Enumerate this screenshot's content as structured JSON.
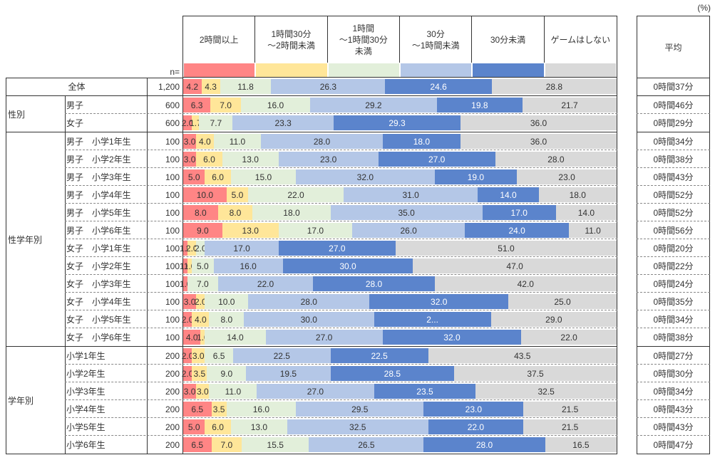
{
  "unit_label": "(%)",
  "n_label": "n=",
  "avg_header": "平均",
  "colors": {
    "2h_plus": "#FF8585",
    "1h30_2h": "#FFE699",
    "1h_1h30": "#E2EFDA",
    "30m_1h": "#B4C7E7",
    "under_30m": "#5B84CC",
    "no_game": "#D9D9D9"
  },
  "groups": [
    {
      "label": "",
      "rows": [
        0
      ]
    },
    {
      "label": "性別",
      "rows": [
        1,
        2
      ]
    },
    {
      "label": "性学年別",
      "rows": [
        3,
        4,
        5,
        6,
        7,
        8,
        9,
        10,
        11,
        12,
        13,
        14
      ]
    },
    {
      "label": "学年別",
      "rows": [
        15,
        16,
        17,
        18,
        19,
        20
      ]
    }
  ],
  "chart_data": {
    "type": "bar",
    "orientation": "horizontal-stacked-100",
    "title": "",
    "unit": "%",
    "series_names": [
      "2時間以上",
      "1時間30分\n～2時間未満",
      "1時間\n～1時間30分\n未満",
      "30分\n～1時間未満",
      "30分未満",
      "ゲームはしない"
    ],
    "categories": [
      "全体",
      "男子",
      "女子",
      "男子　小学1年生",
      "男子　小学2年生",
      "男子　小学3年生",
      "男子　小学4年生",
      "男子　小学5年生",
      "男子　小学6年生",
      "女子　小学1年生",
      "女子　小学2年生",
      "女子　小学3年生",
      "女子　小学4年生",
      "女子　小学5年生",
      "女子　小学6年生",
      "小学1年生",
      "小学2年生",
      "小学3年生",
      "小学4年生",
      "小学5年生",
      "小学6年生"
    ],
    "n": [
      "1,200",
      "600",
      "600",
      "100",
      "100",
      "100",
      "100",
      "100",
      "100",
      "100",
      "100",
      "100",
      "100",
      "100",
      "100",
      "200",
      "200",
      "200",
      "200",
      "200",
      "200"
    ],
    "values": [
      [
        4.2,
        4.3,
        11.8,
        26.3,
        24.6,
        28.8
      ],
      [
        6.3,
        7.0,
        16.0,
        29.2,
        19.8,
        21.7
      ],
      [
        2.0,
        1.7,
        7.7,
        23.3,
        29.3,
        36.0
      ],
      [
        3.0,
        4.0,
        11.0,
        28.0,
        18.0,
        36.0
      ],
      [
        3.0,
        6.0,
        13.0,
        23.0,
        27.0,
        28.0
      ],
      [
        5.0,
        6.0,
        15.0,
        32.0,
        19.0,
        23.0
      ],
      [
        10.0,
        5.0,
        22.0,
        31.0,
        14.0,
        18.0
      ],
      [
        8.0,
        8.0,
        18.0,
        35.0,
        17.0,
        14.0
      ],
      [
        9.0,
        13.0,
        17.0,
        26.0,
        24.0,
        11.0
      ],
      [
        1.0,
        2.0,
        2.0,
        17.0,
        27.0,
        51.0
      ],
      [
        1.0,
        1.0,
        5.0,
        16.0,
        30.0,
        47.0
      ],
      [
        1.0,
        0.0,
        7.0,
        22.0,
        28.0,
        42.0
      ],
      [
        3.0,
        2.0,
        10.0,
        28.0,
        32.0,
        25.0
      ],
      [
        2.0,
        4.0,
        8.0,
        30.0,
        27.0,
        29.0
      ],
      [
        4.0,
        1.0,
        14.0,
        27.0,
        32.0,
        22.0
      ],
      [
        2.0,
        3.0,
        6.5,
        22.5,
        22.5,
        43.5
      ],
      [
        2.0,
        3.5,
        9.0,
        19.5,
        28.5,
        37.5
      ],
      [
        3.0,
        3.0,
        11.0,
        27.0,
        23.5,
        32.5
      ],
      [
        6.5,
        3.5,
        16.0,
        29.5,
        23.0,
        21.5
      ],
      [
        5.0,
        6.0,
        13.0,
        32.5,
        22.0,
        21.5
      ],
      [
        6.5,
        7.0,
        15.5,
        26.5,
        28.0,
        16.5
      ]
    ],
    "labels": [
      [
        "4.2",
        "4.3",
        "11.8",
        "26.3",
        "24.6",
        "28.8"
      ],
      [
        "6.3",
        "7.0",
        "16.0",
        "29.2",
        "19.8",
        "21.7"
      ],
      [
        "2.0",
        "1.7",
        "7.7",
        "23.3",
        "29.3",
        "36.0"
      ],
      [
        "3.0",
        "4.0",
        "11.0",
        "28.0",
        "18.0",
        "36.0"
      ],
      [
        "3.0",
        "6.0",
        "13.0",
        "23.0",
        "27.0",
        "28.0"
      ],
      [
        "5.0",
        "6.0",
        "15.0",
        "32.0",
        "19.0",
        "23.0"
      ],
      [
        "10.0",
        "5.0",
        "22.0",
        "31.0",
        "14.0",
        "18.0"
      ],
      [
        "8.0",
        "8.0",
        "18.0",
        "35.0",
        "17.0",
        "14.0"
      ],
      [
        "9.0",
        "13.0",
        "17.0",
        "26.0",
        "24.0",
        "11.0"
      ],
      [
        "1.0",
        "2.0",
        "2.0",
        "17.0",
        "27.0",
        "51.0"
      ],
      [
        "1.0",
        "1.0",
        "5.0",
        "16.0",
        "30.0",
        "47.0"
      ],
      [
        "1.0",
        "",
        "7.0",
        "22.0",
        "28.0",
        "42.0"
      ],
      [
        "3.0",
        "2.0",
        "10.0",
        "28.0",
        "32.0",
        "25.0"
      ],
      [
        "2.0",
        "4.0",
        "8.0",
        "30.0",
        "2...",
        "29.0"
      ],
      [
        "4.0",
        "1.0",
        "14.0",
        "27.0",
        "32.0",
        "22.0"
      ],
      [
        "2.0",
        "3.0",
        "6.5",
        "22.5",
        "22.5",
        "43.5"
      ],
      [
        "2.0",
        "3.5",
        "9.0",
        "19.5",
        "28.5",
        "37.5"
      ],
      [
        "3.0",
        "3.0",
        "11.0",
        "27.0",
        "23.5",
        "32.5"
      ],
      [
        "6.5",
        "3.5",
        "16.0",
        "29.5",
        "23.0",
        "21.5"
      ],
      [
        "5.0",
        "6.0",
        "13.0",
        "32.5",
        "22.0",
        "21.5"
      ],
      [
        "6.5",
        "7.0",
        "15.5",
        "26.5",
        "28.0",
        "16.5"
      ]
    ],
    "averages": [
      "0時間37分",
      "0時間46分",
      "0時間29分",
      "0時間34分",
      "0時間38分",
      "0時間43分",
      "0時間52分",
      "0時間52分",
      "0時間56分",
      "0時間20分",
      "0時間22分",
      "0時間24分",
      "0時間35分",
      "0時間34分",
      "0時間38分",
      "0時間27分",
      "0時間30分",
      "0時間34分",
      "0時間43分",
      "0時間43分",
      "0時間47分"
    ],
    "xlim": [
      0,
      100
    ],
    "legend": "top (column headers)",
    "grid": false
  }
}
